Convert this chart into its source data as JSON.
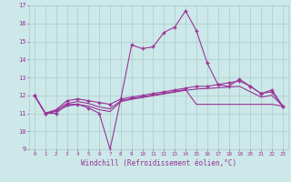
{
  "xlabel": "Windchill (Refroidissement éolien,°C)",
  "x_values": [
    0,
    1,
    2,
    3,
    4,
    5,
    6,
    7,
    8,
    9,
    10,
    11,
    12,
    13,
    14,
    15,
    16,
    17,
    18,
    19,
    20,
    21,
    22,
    23
  ],
  "line1": [
    12,
    11,
    11,
    11.5,
    11.5,
    11.3,
    11.0,
    9.0,
    11.8,
    14.8,
    14.6,
    14.7,
    15.5,
    15.8,
    16.7,
    15.6,
    13.8,
    12.6,
    12.5,
    12.9,
    12.5,
    12.1,
    12.3,
    11.4
  ],
  "line2": [
    12,
    11,
    11.2,
    11.7,
    11.8,
    11.7,
    11.6,
    11.5,
    11.8,
    11.9,
    12.0,
    12.1,
    12.2,
    12.3,
    12.4,
    12.5,
    12.5,
    12.6,
    12.7,
    12.8,
    12.5,
    12.1,
    12.2,
    11.4
  ],
  "line3": [
    12,
    11,
    11.15,
    11.55,
    11.65,
    11.55,
    11.35,
    11.25,
    11.7,
    11.82,
    11.92,
    12.02,
    12.12,
    12.22,
    12.32,
    11.5,
    11.5,
    11.5,
    11.5,
    11.5,
    11.5,
    11.5,
    11.5,
    11.4
  ],
  "line4": [
    12,
    11,
    11.1,
    11.4,
    11.5,
    11.4,
    11.2,
    11.1,
    11.65,
    11.78,
    11.88,
    11.98,
    12.08,
    12.18,
    12.28,
    12.35,
    12.38,
    12.42,
    12.46,
    12.5,
    12.2,
    11.9,
    12.0,
    11.4
  ],
  "line_color": "#993399",
  "bg_color": "#cce8e8",
  "grid_color": "#aacccc",
  "ylim": [
    9,
    17
  ],
  "yticks": [
    9,
    10,
    11,
    12,
    13,
    14,
    15,
    16,
    17
  ],
  "xticks": [
    0,
    1,
    2,
    3,
    4,
    5,
    6,
    7,
    8,
    9,
    10,
    11,
    12,
    13,
    14,
    15,
    16,
    17,
    18,
    19,
    20,
    21,
    22,
    23
  ],
  "marker": "+"
}
